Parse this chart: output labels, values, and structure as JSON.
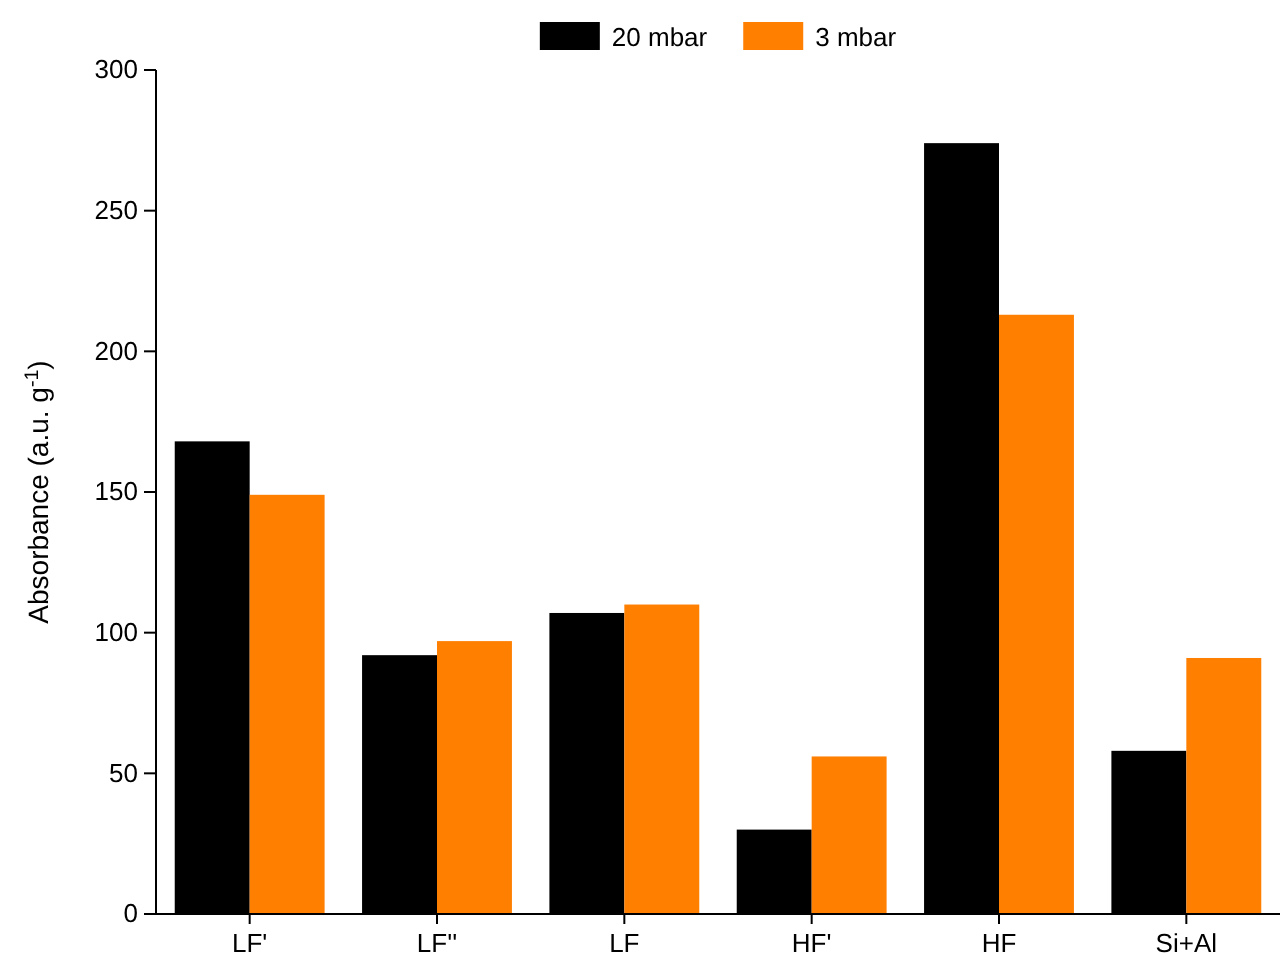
{
  "chart_data": {
    "type": "bar",
    "ylabel": "Absorbance (a.u. g$^{-1}$)",
    "categories": [
      "LF'",
      "LF''",
      "LF",
      "HF'",
      "HF",
      "Si+Al"
    ],
    "series": [
      {
        "name": "20 mbar",
        "color": "#000000",
        "values": [
          168,
          92,
          107,
          30,
          274,
          58
        ]
      },
      {
        "name": "3 mbar",
        "color": "#ff7f00",
        "values": [
          149,
          97,
          110,
          56,
          213,
          91
        ]
      }
    ],
    "ylim": [
      0,
      300
    ],
    "yticks": [
      0,
      50,
      100,
      150,
      200,
      250,
      300
    ],
    "grid": false,
    "legend": "top"
  }
}
